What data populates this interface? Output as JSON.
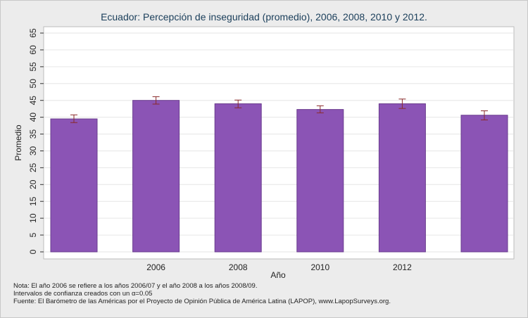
{
  "chart_data": {
    "type": "bar",
    "title": "Ecuador: Percepción de inseguridad (promedio), 2006, 2008, 2010 y 2012.",
    "xlabel": "Año",
    "ylabel": "Promedio",
    "ylim": [
      0,
      65
    ],
    "yticks": [
      0,
      5,
      10,
      15,
      20,
      25,
      30,
      35,
      40,
      45,
      50,
      55,
      60,
      65
    ],
    "x_tick_labels": [
      "",
      "2006",
      "2008",
      "2010",
      "2012",
      ""
    ],
    "values": [
      39.5,
      45.0,
      44.0,
      42.3,
      44.0,
      40.6
    ],
    "ci_low": [
      38.4,
      43.9,
      42.8,
      41.3,
      42.6,
      39.2
    ],
    "ci_high": [
      40.7,
      46.1,
      45.1,
      43.4,
      45.4,
      41.9
    ],
    "grid": true,
    "bar_color": "#8b54b5",
    "bar_edge_color": "#6a3c8e",
    "error_bar_color": "#8a2a2a",
    "grid_color": "#e6e6e6",
    "plot_background": "#ffffff"
  },
  "notes": {
    "line1": "Nota: El año 2006 se refiere a los años 2006/07 y el año 2008 a los años 2008/09.",
    "line2": "Intervalos de confianza creados con un α=0.05",
    "line3": "Fuente: El Barómetro de las Américas por el Proyecto de Opinión Pública de América Latina (LAPOP), www.LapopSurveys.org."
  }
}
